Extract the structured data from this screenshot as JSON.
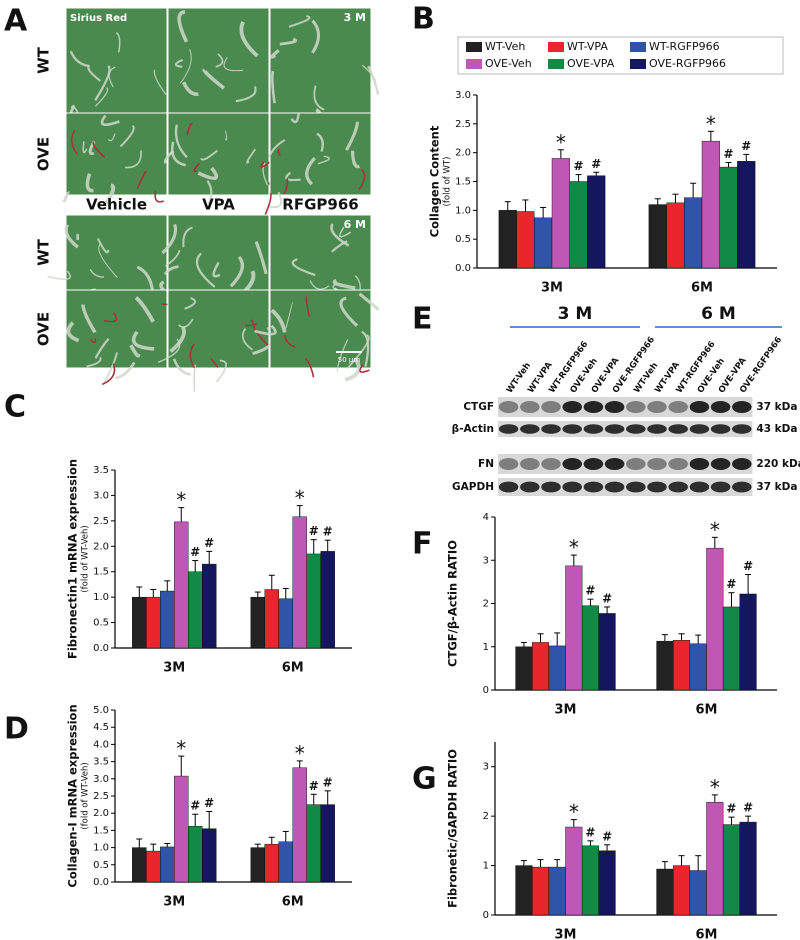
{
  "panel_labels": [
    "A",
    "B",
    "C",
    "D",
    "E",
    "F",
    "G"
  ],
  "histology": {
    "stain": "Sirius Red",
    "timepoints": [
      "3 M",
      "6 M"
    ],
    "column_labels": [
      "Vehicle",
      "VPA",
      "RFGP966"
    ],
    "row_labels": [
      "WT",
      "OVE",
      "WT",
      "OVE"
    ],
    "scale_bar": "50 μm"
  },
  "blot": {
    "groups": [
      "3 M",
      "6 M"
    ],
    "lanes": [
      "WT-Veh",
      "WT-VPA",
      "WT-RGFP966",
      "OVE-Veh",
      "OVE-VPA",
      "OVE-RGFP966",
      "WT-Veh",
      "WT-VPA",
      "WT-RGFP966",
      "OVE-Veh",
      "OVE-VPA",
      "OVE-RGFP966"
    ],
    "bands": [
      {
        "name": "CTGF",
        "size": "37 kDa"
      },
      {
        "name": "β-Actin",
        "size": "43 kDa"
      },
      {
        "name": "FN",
        "size": "220 kDa"
      },
      {
        "name": "GAPDH",
        "size": "37 kDa"
      }
    ]
  },
  "chart_data": [
    {
      "type": "bar",
      "ylabel": "Collagen Content",
      "ylabel_sub": "(fold of WT)",
      "categories": [
        "3M",
        "6M"
      ],
      "ylim": [
        0,
        3.0
      ],
      "yticks": [
        {
          "value": 0,
          "label": "0.0"
        },
        0.5,
        {
          "value": 1,
          "label": "1.0"
        },
        1.5,
        {
          "value": 2,
          "label": "2.0"
        },
        2.5,
        {
          "value": 3,
          "label": "3.0"
        }
      ],
      "legend": "top",
      "series": [
        {
          "name": "WT-Veh",
          "color": "#222222",
          "values": [
            1.0,
            1.1
          ],
          "errors": [
            0.15,
            0.1
          ]
        },
        {
          "name": "WT-VPA",
          "color": "#e8262b",
          "values": [
            0.98,
            1.13
          ],
          "errors": [
            0.2,
            0.15
          ]
        },
        {
          "name": "WT-RGFP966",
          "color": "#2f55a8",
          "values": [
            0.87,
            1.22
          ],
          "errors": [
            0.18,
            0.25
          ]
        },
        {
          "name": "OVE-Veh",
          "color": "#bf58b5",
          "values": [
            1.9,
            2.2
          ],
          "errors": [
            0.15,
            0.17
          ],
          "significance": [
            "*",
            "*"
          ]
        },
        {
          "name": "OVE-VPA",
          "color": "#128a45",
          "values": [
            1.5,
            1.75
          ],
          "errors": [
            0.12,
            0.08
          ],
          "significance": [
            "#",
            "#"
          ]
        },
        {
          "name": "OVE-RGFP966",
          "color": "#14175e",
          "values": [
            1.6,
            1.85
          ],
          "errors": [
            0.06,
            0.12
          ],
          "significance": [
            "#",
            "#"
          ]
        }
      ]
    },
    {
      "type": "bar",
      "ylabel": "Fibronectin1 mRNA expression",
      "ylabel_sub": "(fold of WT-Veh)",
      "categories": [
        "3M",
        "6M"
      ],
      "ylim": [
        0,
        3.5
      ],
      "yticks": [
        {
          "value": 0,
          "label": "0.0"
        },
        0.5,
        {
          "value": 1,
          "label": "1.0"
        },
        1.5,
        {
          "value": 2,
          "label": "2.0"
        },
        2.5,
        {
          "value": 3,
          "label": "3.0"
        },
        3.5
      ],
      "series": [
        {
          "color": "#222222",
          "values": [
            1.0,
            1.0
          ],
          "errors": [
            0.2,
            0.1
          ]
        },
        {
          "color": "#e8262b",
          "values": [
            1.0,
            1.15
          ],
          "errors": [
            0.15,
            0.28
          ]
        },
        {
          "color": "#2f55a8",
          "values": [
            1.12,
            0.97
          ],
          "errors": [
            0.2,
            0.2
          ]
        },
        {
          "color": "#bf58b5",
          "values": [
            2.48,
            2.58
          ],
          "errors": [
            0.28,
            0.22
          ],
          "significance": [
            "*",
            "*"
          ]
        },
        {
          "color": "#128a45",
          "values": [
            1.5,
            1.85
          ],
          "errors": [
            0.22,
            0.28
          ],
          "significance": [
            "#",
            "#"
          ]
        },
        {
          "color": "#14175e",
          "values": [
            1.65,
            1.9
          ],
          "errors": [
            0.25,
            0.22
          ],
          "significance": [
            "#",
            "#"
          ]
        }
      ]
    },
    {
      "type": "bar",
      "ylabel": "Collagen-Ⅰ mRNA expression",
      "ylabel_sub": "(fold of WT-Veh)",
      "categories": [
        "3M",
        "6M"
      ],
      "ylim": [
        0,
        5.0
      ],
      "yticks": [
        {
          "value": 0,
          "label": "0.0"
        },
        0.5,
        {
          "value": 1,
          "label": "1.0"
        },
        1.5,
        {
          "value": 2,
          "label": "2.0"
        },
        2.5,
        {
          "value": 3,
          "label": "3.0"
        },
        3.5,
        {
          "value": 4,
          "label": "4.0"
        },
        4.5,
        {
          "value": 5,
          "label": "5.0"
        }
      ],
      "series": [
        {
          "color": "#222222",
          "values": [
            1.0,
            1.0
          ],
          "errors": [
            0.25,
            0.1
          ]
        },
        {
          "color": "#e8262b",
          "values": [
            0.9,
            1.1
          ],
          "errors": [
            0.2,
            0.2
          ]
        },
        {
          "color": "#2f55a8",
          "values": [
            1.02,
            1.17
          ],
          "errors": [
            0.1,
            0.3
          ]
        },
        {
          "color": "#bf58b5",
          "values": [
            3.08,
            3.32
          ],
          "errors": [
            0.58,
            0.2
          ],
          "significance": [
            "*",
            "*"
          ]
        },
        {
          "color": "#128a45",
          "values": [
            1.62,
            2.25
          ],
          "errors": [
            0.35,
            0.3
          ],
          "significance": [
            "#",
            "#"
          ]
        },
        {
          "color": "#14175e",
          "values": [
            1.55,
            2.25
          ],
          "errors": [
            0.5,
            0.4
          ],
          "significance": [
            "#",
            "#"
          ]
        }
      ]
    },
    {
      "type": "bar",
      "ylabel": "CTGF/β-Actin RATIO",
      "categories": [
        "3M",
        "6M"
      ],
      "ylim": [
        0,
        4
      ],
      "yticks": [
        0,
        1,
        2,
        3,
        4
      ],
      "series": [
        {
          "color": "#222222",
          "values": [
            1.0,
            1.13
          ],
          "errors": [
            0.1,
            0.15
          ]
        },
        {
          "color": "#e8262b",
          "values": [
            1.1,
            1.15
          ],
          "errors": [
            0.2,
            0.15
          ]
        },
        {
          "color": "#2f55a8",
          "values": [
            1.02,
            1.07
          ],
          "errors": [
            0.3,
            0.2
          ]
        },
        {
          "color": "#bf58b5",
          "values": [
            2.87,
            3.28
          ],
          "errors": [
            0.25,
            0.25
          ],
          "significance": [
            "*",
            "*"
          ]
        },
        {
          "color": "#128a45",
          "values": [
            1.95,
            1.92
          ],
          "errors": [
            0.15,
            0.33
          ],
          "significance": [
            "#",
            "#"
          ]
        },
        {
          "color": "#14175e",
          "values": [
            1.77,
            2.22
          ],
          "errors": [
            0.15,
            0.45
          ],
          "significance": [
            "#",
            "#"
          ]
        }
      ]
    },
    {
      "type": "bar",
      "ylabel": "Fibronetic/GAPDH RATIO",
      "categories": [
        "3M",
        "6M"
      ],
      "ylim": [
        0,
        3.5
      ],
      "yticks": [
        0,
        1,
        2,
        3
      ],
      "series": [
        {
          "color": "#222222",
          "values": [
            1.0,
            0.93
          ],
          "errors": [
            0.1,
            0.15
          ]
        },
        {
          "color": "#e8262b",
          "values": [
            0.97,
            1.0
          ],
          "errors": [
            0.15,
            0.2
          ]
        },
        {
          "color": "#2f55a8",
          "values": [
            0.97,
            0.9
          ],
          "errors": [
            0.15,
            0.3
          ]
        },
        {
          "color": "#bf58b5",
          "values": [
            1.78,
            2.28
          ],
          "errors": [
            0.15,
            0.15
          ],
          "significance": [
            "*",
            "*"
          ]
        },
        {
          "color": "#128a45",
          "values": [
            1.4,
            1.83
          ],
          "errors": [
            0.1,
            0.15
          ],
          "significance": [
            "#",
            "#"
          ]
        },
        {
          "color": "#14175e",
          "values": [
            1.3,
            1.88
          ],
          "errors": [
            0.12,
            0.12
          ],
          "significance": [
            "#",
            "#"
          ]
        }
      ]
    }
  ]
}
